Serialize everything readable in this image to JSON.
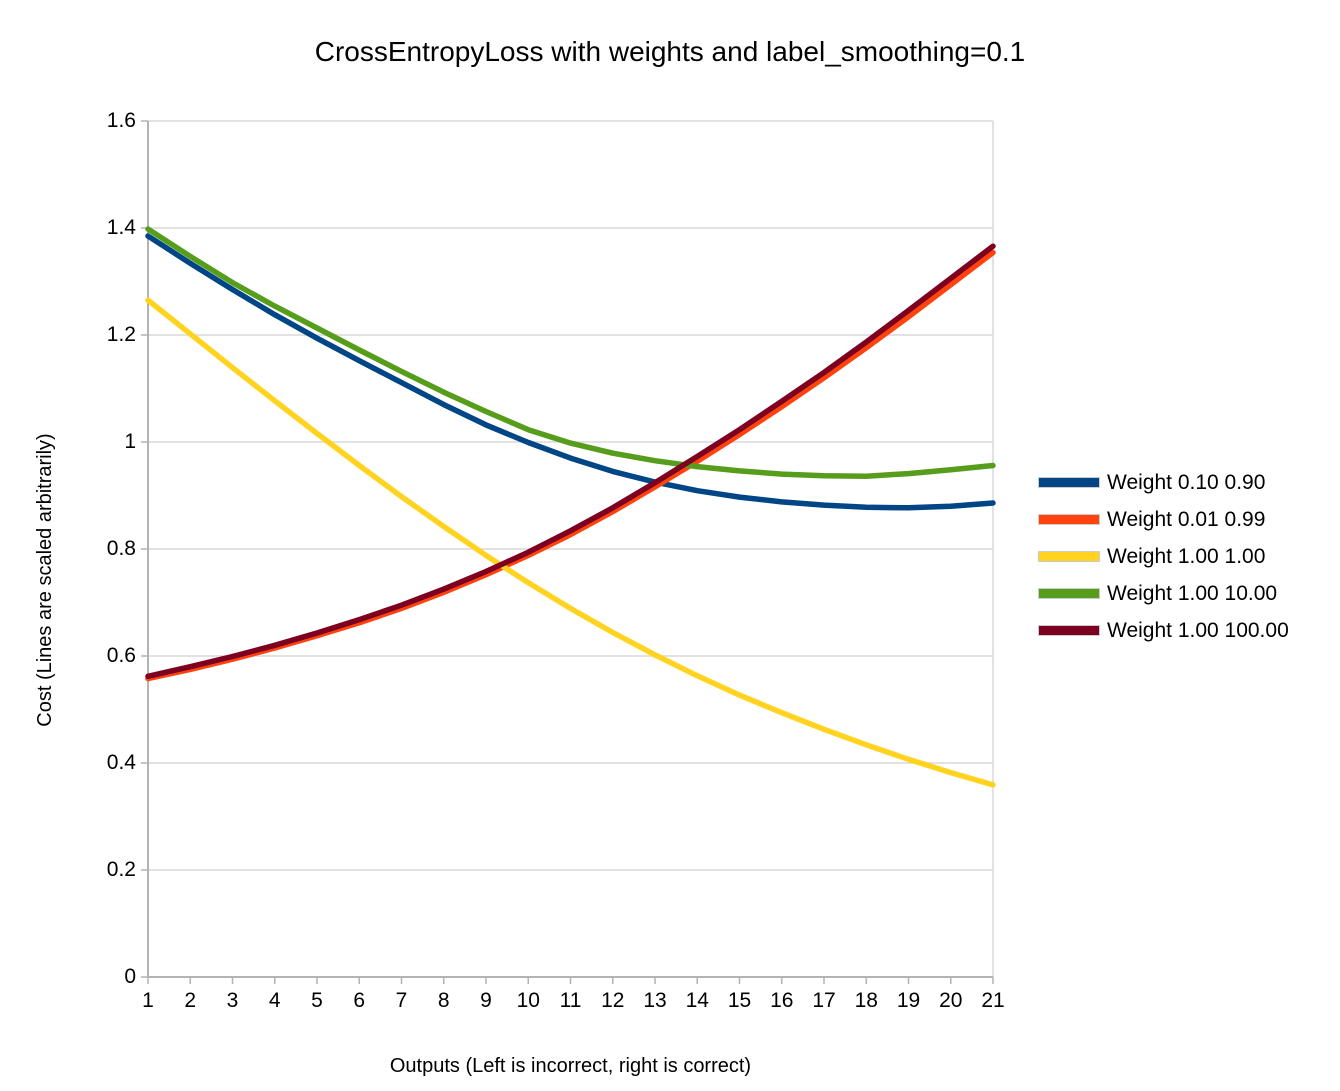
{
  "colors": {
    "background": "#FFFFFF",
    "text": "#000000",
    "gridline": "#D9D9D9",
    "axis": "#B3B3B3"
  },
  "chart_data": {
    "type": "line",
    "title": "CrossEntropyLoss with weights and label_smoothing=0.1",
    "xlabel": "Outputs (Left is incorrect, right is correct)",
    "ylabel": "Cost (Lines are scaled arbitrarily)",
    "x": [
      1,
      2,
      3,
      4,
      5,
      6,
      7,
      8,
      9,
      10,
      11,
      12,
      13,
      14,
      15,
      16,
      17,
      18,
      19,
      20,
      21
    ],
    "x_tick_labels": [
      "1",
      "2",
      "3",
      "4",
      "5",
      "6",
      "7",
      "8",
      "9",
      "10",
      "11",
      "12",
      "13",
      "14",
      "15",
      "16",
      "17",
      "18",
      "19",
      "20",
      "21"
    ],
    "xlim": [
      1,
      21
    ],
    "ylim": [
      0,
      1.6
    ],
    "y_ticks": [
      0,
      0.2,
      0.4,
      0.6,
      0.8,
      1.0,
      1.2,
      1.4,
      1.6
    ],
    "y_tick_labels": [
      "0",
      "0.2",
      "0.4",
      "0.6",
      "0.8",
      "1",
      "1.2",
      "1.4",
      "1.6"
    ],
    "grid": "horizontal",
    "legend_position": "right",
    "series": [
      {
        "name": "Weight 0.10 0.90",
        "color": "#004586",
        "values": [
          1.385,
          1.334,
          1.285,
          1.238,
          1.194,
          1.152,
          1.111,
          1.07,
          1.032,
          0.999,
          0.97,
          0.945,
          0.925,
          0.909,
          0.897,
          0.888,
          0.882,
          0.878,
          0.877,
          0.88,
          0.886
        ]
      },
      {
        "name": "Weight 0.01 0.99",
        "color": "#FF420E",
        "values": [
          0.558,
          0.575,
          0.594,
          0.615,
          0.638,
          0.662,
          0.689,
          0.719,
          0.752,
          0.788,
          0.827,
          0.87,
          0.916,
          0.964,
          1.014,
          1.066,
          1.12,
          1.176,
          1.234,
          1.294,
          1.354
        ]
      },
      {
        "name": "Weight 1.00 1.00",
        "color": "#FFD320",
        "values": [
          1.265,
          1.202,
          1.139,
          1.077,
          1.016,
          0.956,
          0.898,
          0.842,
          0.788,
          0.737,
          0.689,
          0.644,
          0.602,
          0.563,
          0.527,
          0.494,
          0.463,
          0.434,
          0.407,
          0.382,
          0.359
        ]
      },
      {
        "name": "Weight 1.00 10.00",
        "color": "#579D1C",
        "values": [
          1.398,
          1.347,
          1.298,
          1.254,
          1.213,
          1.172,
          1.132,
          1.093,
          1.057,
          1.023,
          0.998,
          0.979,
          0.965,
          0.954,
          0.946,
          0.94,
          0.937,
          0.936,
          0.941,
          0.948,
          0.956
        ]
      },
      {
        "name": "Weight 1.00 100.00",
        "color": "#7E0021",
        "values": [
          0.562,
          0.58,
          0.599,
          0.62,
          0.643,
          0.668,
          0.695,
          0.725,
          0.758,
          0.794,
          0.834,
          0.877,
          0.924,
          0.973,
          1.023,
          1.076,
          1.13,
          1.187,
          1.246,
          1.306,
          1.366
        ]
      }
    ]
  }
}
